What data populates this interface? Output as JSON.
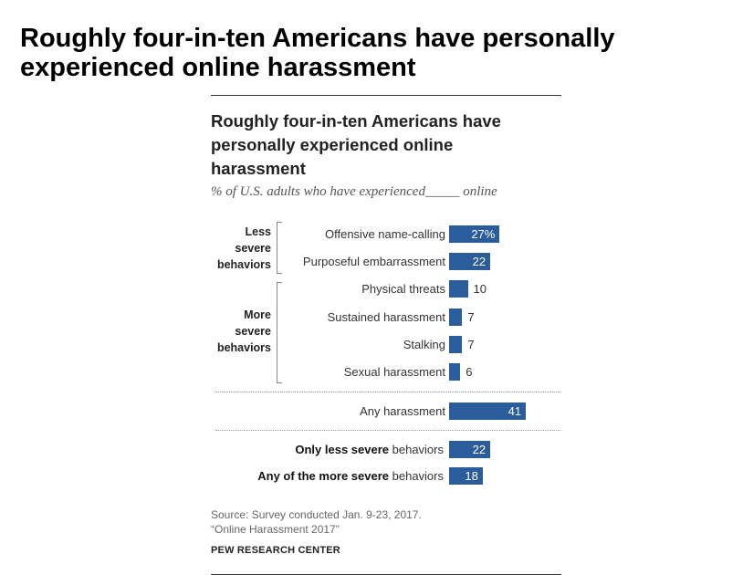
{
  "page_heading": "Roughly four-in-ten Americans have personally experienced online harassment",
  "chart_data": {
    "type": "bar",
    "orientation": "horizontal",
    "title": "Roughly four-in-ten Americans have personally experienced online harassment",
    "subtitle": "% of U.S. adults who have experienced_____ online",
    "groups": [
      {
        "label_lines": [
          "Less",
          "severe",
          "behaviors"
        ],
        "categories": [
          "Offensive name-calling",
          "Purposeful embarrassment"
        ]
      },
      {
        "label_lines": [
          "More",
          "severe",
          "behaviors"
        ],
        "categories": [
          "Physical threats",
          "Sustained harassment",
          "Stalking",
          "Sexual harassment"
        ]
      }
    ],
    "categories": [
      "Offensive name-calling",
      "Purposeful embarrassment",
      "Physical threats",
      "Sustained harassment",
      "Stalking",
      "Sexual harassment"
    ],
    "values": [
      27,
      22,
      10,
      7,
      7,
      6
    ],
    "value_labels": [
      "27%",
      "22",
      "10",
      "7",
      "7",
      "6"
    ],
    "any": {
      "label": "Any harassment",
      "value": 41,
      "value_label": "41"
    },
    "summary": [
      {
        "bold": "Only less severe",
        "rest": " behaviors",
        "value": 22,
        "value_label": "22"
      },
      {
        "bold": "Any of the more severe",
        "rest": " behaviors",
        "value": 18,
        "value_label": "18"
      }
    ],
    "bar_color": "#2b5d9c",
    "legend": "none",
    "grid": false
  },
  "source_lines": [
    "Source: Survey conducted Jan. 9-23, 2017.",
    "“Online Harassment 2017”"
  ],
  "brand": "PEW RESEARCH CENTER"
}
